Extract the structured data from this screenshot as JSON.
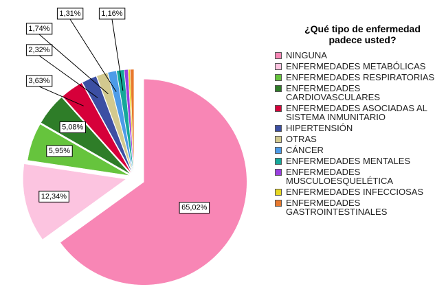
{
  "chart_data": {
    "type": "pie",
    "title": "¿Qué tipo de enfermedad\npadece usted?",
    "categories": [
      "NINGUNA",
      "ENFERMEDADES METABÓLICAS",
      "ENFERMEDADES RESPIRATORIAS",
      "ENFERMEDADES\nCARDIOVASCULARES",
      "ENFERMEDADES ASOCIADAS AL\nSISTEMA INMUNITARIO",
      "HIPERTENSIÓN",
      "OTRAS",
      "CÁNCER",
      "ENFERMEDADES MENTALES",
      "ENFERMEDADES\nMUSCULOESQUELÉTICA",
      "ENFERMEDADES INFECCIOSAS",
      "ENFERMEDADES\nGASTROINTESTINALES"
    ],
    "values": [
      65.02,
      12.34,
      5.95,
      5.08,
      3.63,
      2.32,
      1.74,
      1.31,
      1.16,
      0.58,
      0.29,
      0.58
    ],
    "value_labels": [
      "65,02%",
      "12,34%",
      "5,95%",
      "5,08%",
      "3,63%",
      "2,32%",
      "1,74%",
      "1,31%",
      "1,16%",
      null,
      null,
      null
    ],
    "colors": [
      "#f886b5",
      "#fcc4e0",
      "#66c43d",
      "#2e7d28",
      "#d6003a",
      "#3c4fa3",
      "#d2c98f",
      "#4c9be8",
      "#15a89a",
      "#9a3fe0",
      "#e6d722",
      "#e8792d"
    ],
    "legend": "right"
  }
}
